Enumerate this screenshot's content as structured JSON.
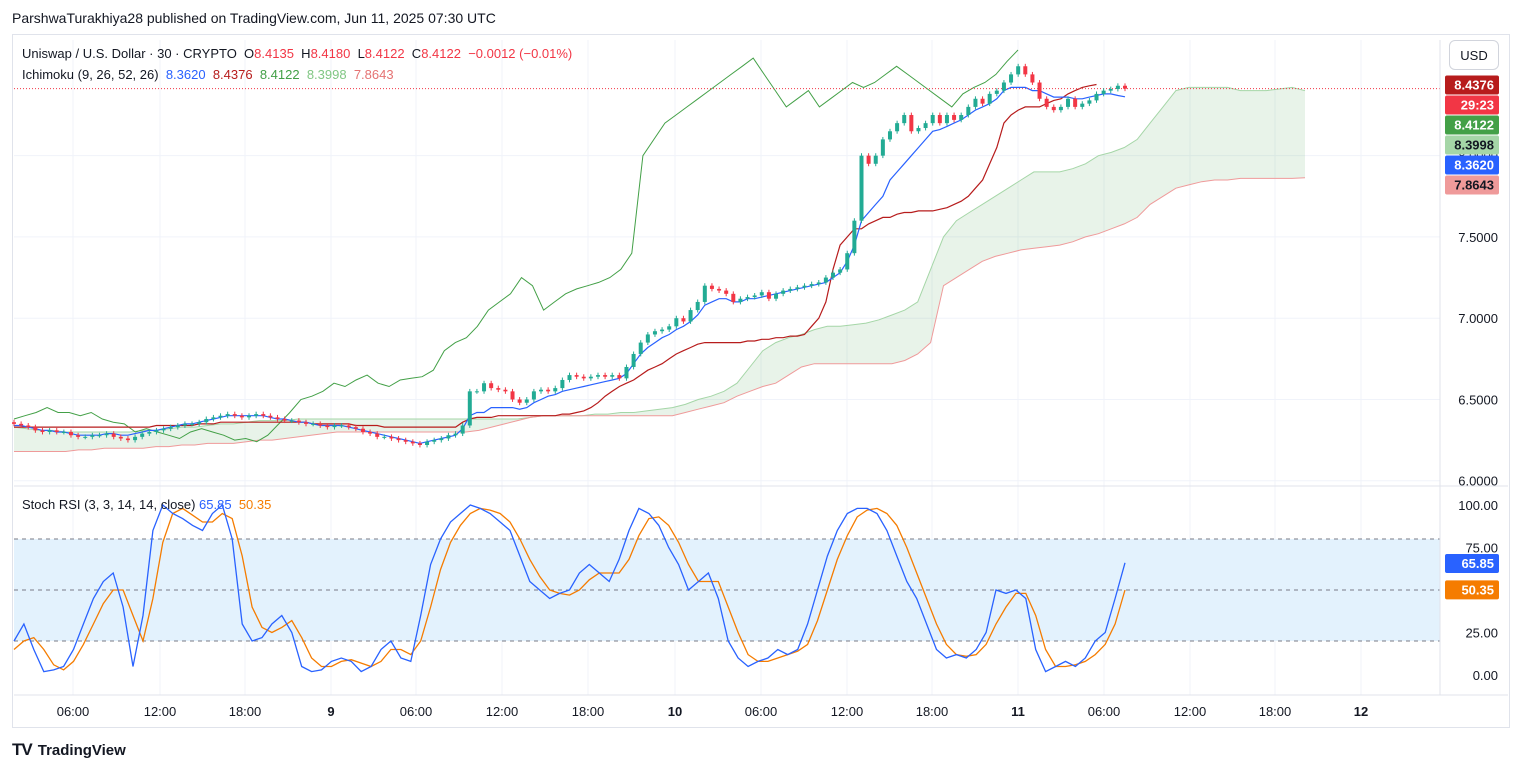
{
  "header": {
    "publisher_line": "ParshwaTurakhiya28 published on TradingView.com, Jun 11, 2025 07:30 UTC"
  },
  "currency_button": "USD",
  "legend_main": {
    "symbol": "Uniswap / U.S. Dollar · 30 · CRYPTO",
    "open_label": "O",
    "open": "8.4135",
    "high_label": "H",
    "high": "8.4180",
    "low_label": "L",
    "low": "8.4122",
    "close_label": "C",
    "close": "8.4122",
    "change": "−0.0012 (−0.01%)"
  },
  "legend_ichimoku": {
    "name": "Ichimoku (9, 26, 52, 26)",
    "conversion": "8.3620",
    "base": "8.4376",
    "lagging": "8.4122",
    "lead1": "8.3998",
    "lead2": "7.8643"
  },
  "legend_stoch": {
    "name": "Stoch RSI (3, 3, 14, 14, close)",
    "k": "65.85",
    "d": "50.35"
  },
  "footer": {
    "brand": "TradingView",
    "logo_text": "TV"
  },
  "colors": {
    "up": "#22ab94",
    "down": "#f23645",
    "conversion": "#2962ff",
    "base": "#b71c1c",
    "lagging": "#43a047",
    "lead1": "#a5d6a7",
    "lead2": "#ef9a9a",
    "k": "#2962ff",
    "d": "#f57c00",
    "band": "#e3f2fd"
  },
  "chart_data": {
    "type": "candlestick",
    "x_ticks": [
      "06:00",
      "12:00",
      "18:00",
      "9",
      "06:00",
      "12:00",
      "18:00",
      "10",
      "06:00",
      "12:00",
      "18:00",
      "11",
      "06:00",
      "12:00",
      "18:00",
      "12"
    ],
    "y_ticks": [
      "6.0000",
      "6.5000",
      "7.0000",
      "7.5000",
      "8.0000"
    ],
    "ylim": [
      5.98,
      8.65
    ],
    "price_tags": [
      {
        "label": "8.4376",
        "value": 8.4376,
        "color": "#b71c1c",
        "text_color": "#ffffff"
      },
      {
        "label": "29:23",
        "value": 8.328,
        "color": "#f23645",
        "text_color": "#ffffff"
      },
      {
        "label": "8.4122",
        "value": 8.4122,
        "color": "#43a047",
        "text_color": "#ffffff"
      },
      {
        "label": "8.3998",
        "value": 8.3998,
        "color": "#a5d6a7",
        "text_color": "#131722"
      },
      {
        "label": "8.3620",
        "value": 8.362,
        "color": "#2962ff",
        "text_color": "#ffffff"
      },
      {
        "label": "7.8643",
        "value": 7.8643,
        "color": "#ef9a9a",
        "text_color": "#131722"
      }
    ],
    "candles_close": [
      6.35,
      6.34,
      6.33,
      6.31,
      6.3,
      6.31,
      6.3,
      6.3,
      6.28,
      6.27,
      6.27,
      6.28,
      6.28,
      6.29,
      6.27,
      6.26,
      6.25,
      6.27,
      6.29,
      6.3,
      6.31,
      6.32,
      6.33,
      6.34,
      6.35,
      6.35,
      6.36,
      6.38,
      6.39,
      6.4,
      6.41,
      6.4,
      6.39,
      6.4,
      6.41,
      6.4,
      6.39,
      6.38,
      6.37,
      6.37,
      6.36,
      6.35,
      6.35,
      6.34,
      6.33,
      6.34,
      6.34,
      6.33,
      6.32,
      6.3,
      6.29,
      6.27,
      6.27,
      6.26,
      6.25,
      6.24,
      6.23,
      6.22,
      6.24,
      6.25,
      6.26,
      6.28,
      6.29,
      6.34,
      6.55,
      6.55,
      6.6,
      6.57,
      6.56,
      6.55,
      6.5,
      6.48,
      6.5,
      6.55,
      6.56,
      6.55,
      6.57,
      6.62,
      6.65,
      6.64,
      6.63,
      6.64,
      6.65,
      6.64,
      6.65,
      6.63,
      6.7,
      6.78,
      6.85,
      6.9,
      6.92,
      6.93,
      6.95,
      7.0,
      6.98,
      7.05,
      7.1,
      7.2,
      7.18,
      7.17,
      7.15,
      7.1,
      7.12,
      7.13,
      7.14,
      7.16,
      7.12,
      7.15,
      7.17,
      7.18,
      7.19,
      7.2,
      7.21,
      7.22,
      7.25,
      7.28,
      7.3,
      7.4,
      7.6,
      8.0,
      7.95,
      8.0,
      8.1,
      8.15,
      8.2,
      8.25,
      8.15,
      8.17,
      8.2,
      8.25,
      8.2,
      8.25,
      8.22,
      8.25,
      8.3,
      8.35,
      8.32,
      8.38,
      8.4,
      8.45,
      8.5,
      8.55,
      8.5,
      8.45,
      8.35,
      8.3,
      8.28,
      8.3,
      8.35,
      8.3,
      8.32,
      8.34,
      8.38,
      8.4,
      8.41,
      8.43,
      8.4122
    ],
    "conversion_line": [
      6.34,
      6.34,
      6.33,
      6.32,
      6.31,
      6.31,
      6.3,
      6.3,
      6.29,
      6.28,
      6.28,
      6.28,
      6.28,
      6.29,
      6.29,
      6.28,
      6.28,
      6.29,
      6.3,
      6.31,
      6.31,
      6.32,
      6.33,
      6.34,
      6.35,
      6.35,
      6.36,
      6.37,
      6.38,
      6.39,
      6.4,
      6.4,
      6.4,
      6.4,
      6.4,
      6.4,
      6.39,
      6.38,
      6.38,
      6.37,
      6.36,
      6.36,
      6.35,
      6.34,
      6.34,
      6.34,
      6.34,
      6.33,
      6.32,
      6.31,
      6.3,
      6.29,
      6.28,
      6.27,
      6.26,
      6.25,
      6.24,
      6.23,
      6.24,
      6.25,
      6.26,
      6.27,
      6.28,
      6.32,
      6.4,
      6.42,
      6.42,
      6.45,
      6.45,
      6.45,
      6.45,
      6.44,
      6.45,
      6.48,
      6.5,
      6.52,
      6.53,
      6.55,
      6.56,
      6.57,
      6.58,
      6.59,
      6.6,
      6.61,
      6.62,
      6.63,
      6.66,
      6.72,
      6.78,
      6.82,
      6.85,
      6.88,
      6.9,
      6.93,
      6.95,
      6.98,
      7.02,
      7.08,
      7.1,
      7.12,
      7.12,
      7.1,
      7.1,
      7.12,
      7.12,
      7.13,
      7.14,
      7.15,
      7.16,
      7.17,
      7.18,
      7.19,
      7.2,
      7.21,
      7.22,
      7.25,
      7.28,
      7.35,
      7.45,
      7.6,
      7.65,
      7.7,
      7.75,
      7.85,
      7.9,
      7.95,
      8.0,
      8.05,
      8.1,
      8.15,
      8.16,
      8.18,
      8.2,
      8.22,
      8.25,
      8.28,
      8.3,
      8.32,
      8.35,
      8.4,
      8.42,
      8.42,
      8.42,
      8.4,
      8.4,
      8.38,
      8.36,
      8.36,
      8.36,
      8.35,
      8.35,
      8.36,
      8.37,
      8.38,
      8.38,
      8.37,
      8.362
    ],
    "base_line": [
      6.33,
      6.33,
      6.33,
      6.33,
      6.33,
      6.33,
      6.33,
      6.33,
      6.33,
      6.33,
      6.33,
      6.33,
      6.33,
      6.33,
      6.33,
      6.33,
      6.33,
      6.33,
      6.33,
      6.33,
      6.34,
      6.34,
      6.34,
      6.34,
      6.34,
      6.34,
      6.35,
      6.35,
      6.35,
      6.36,
      6.36,
      6.36,
      6.36,
      6.36,
      6.36,
      6.36,
      6.36,
      6.36,
      6.36,
      6.36,
      6.36,
      6.36,
      6.35,
      6.35,
      6.35,
      6.35,
      6.35,
      6.35,
      6.34,
      6.34,
      6.34,
      6.34,
      6.33,
      6.33,
      6.33,
      6.33,
      6.33,
      6.33,
      6.33,
      6.33,
      6.33,
      6.33,
      6.33,
      6.36,
      6.38,
      6.39,
      6.39,
      6.39,
      6.4,
      6.4,
      6.4,
      6.4,
      6.4,
      6.4,
      6.4,
      6.4,
      6.4,
      6.41,
      6.41,
      6.42,
      6.43,
      6.45,
      6.48,
      6.52,
      6.55,
      6.58,
      6.6,
      6.62,
      6.65,
      6.68,
      6.7,
      6.72,
      6.75,
      6.78,
      6.8,
      6.82,
      6.84,
      6.85,
      6.85,
      6.85,
      6.85,
      6.85,
      6.85,
      6.86,
      6.86,
      6.87,
      6.87,
      6.88,
      6.88,
      6.89,
      6.89,
      6.9,
      6.95,
      7.0,
      7.1,
      7.3,
      7.45,
      7.5,
      7.55,
      7.55,
      7.58,
      7.6,
      7.62,
      7.62,
      7.64,
      7.65,
      7.65,
      7.66,
      7.66,
      7.66,
      7.67,
      7.68,
      7.7,
      7.72,
      7.75,
      7.8,
      7.85,
      7.95,
      8.05,
      8.2,
      8.25,
      8.28,
      8.3,
      8.3,
      8.3,
      8.32,
      8.34,
      8.35,
      8.38,
      8.4,
      8.42,
      8.43,
      8.4376
    ],
    "lagging_span": [
      6.38,
      6.4,
      6.42,
      6.45,
      6.42,
      6.42,
      6.4,
      6.42,
      6.38,
      6.36,
      6.35,
      6.3,
      6.32,
      6.3,
      6.28,
      6.26,
      6.3,
      6.32,
      6.3,
      6.28,
      6.25,
      6.26,
      6.24,
      6.28,
      6.35,
      6.42,
      6.5,
      6.52,
      6.55,
      6.6,
      6.58,
      6.62,
      6.65,
      6.6,
      6.58,
      6.62,
      6.63,
      6.64,
      6.68,
      6.8,
      6.85,
      6.88,
      6.95,
      7.05,
      7.1,
      7.15,
      7.25,
      7.2,
      7.05,
      7.1,
      7.15,
      7.18,
      7.2,
      7.22,
      7.25,
      7.3,
      7.4,
      8.0,
      8.1,
      8.2,
      8.25,
      8.3,
      8.35,
      8.4,
      8.45,
      8.5,
      8.55,
      8.6,
      8.5,
      8.4,
      8.3,
      8.35,
      8.4,
      8.3,
      8.35,
      8.4,
      8.45,
      8.42,
      8.45,
      8.5,
      8.55,
      8.5,
      8.45,
      8.4,
      8.35,
      8.3,
      8.38,
      8.42,
      8.45,
      8.5,
      8.58,
      8.65
    ],
    "lead1": [
      6.33,
      6.32,
      6.31,
      6.31,
      6.3,
      6.3,
      6.3,
      6.3,
      6.3,
      6.3,
      6.31,
      6.31,
      6.32,
      6.33,
      6.33,
      6.34,
      6.35,
      6.35,
      6.36,
      6.37,
      6.37,
      6.37,
      6.38,
      6.38,
      6.38,
      6.38,
      6.38,
      6.38,
      6.38,
      6.38,
      6.38,
      6.38,
      6.38,
      6.38,
      6.38,
      6.38,
      6.38,
      6.38,
      6.38,
      6.38,
      6.39,
      6.4,
      6.4,
      6.4,
      6.4,
      6.41,
      6.41,
      6.42,
      6.42,
      6.43,
      6.44,
      6.45,
      6.47,
      6.5,
      6.52,
      6.55,
      6.6,
      6.7,
      6.8,
      6.85,
      6.88,
      6.9,
      6.93,
      6.95,
      6.95,
      6.96,
      6.97,
      6.99,
      7.02,
      7.05,
      7.1,
      7.3,
      7.5,
      7.6,
      7.65,
      7.7,
      7.75,
      7.8,
      7.85,
      7.9,
      7.9,
      7.9,
      7.92,
      7.95,
      8.0,
      8.02,
      8.05,
      8.1,
      8.2,
      8.3,
      8.4,
      8.42,
      8.42,
      8.42,
      8.42,
      8.4,
      8.4,
      8.4,
      8.41,
      8.42,
      8.3998
    ],
    "lead2": [
      6.18,
      6.18,
      6.18,
      6.18,
      6.18,
      6.19,
      6.19,
      6.2,
      6.2,
      6.2,
      6.2,
      6.21,
      6.21,
      6.22,
      6.22,
      6.23,
      6.23,
      6.23,
      6.24,
      6.25,
      6.25,
      6.26,
      6.27,
      6.28,
      6.29,
      6.3,
      6.3,
      6.3,
      6.3,
      6.3,
      6.3,
      6.3,
      6.3,
      6.3,
      6.3,
      6.3,
      6.31,
      6.33,
      6.35,
      6.37,
      6.39,
      6.4,
      6.4,
      6.4,
      6.4,
      6.4,
      6.4,
      6.4,
      6.4,
      6.4,
      6.4,
      6.4,
      6.42,
      6.44,
      6.46,
      6.48,
      6.52,
      6.55,
      6.58,
      6.6,
      6.65,
      6.7,
      6.72,
      6.72,
      6.72,
      6.72,
      6.72,
      6.72,
      6.72,
      6.74,
      6.78,
      6.85,
      7.2,
      7.25,
      7.3,
      7.35,
      7.38,
      7.4,
      7.42,
      7.43,
      7.44,
      7.45,
      7.47,
      7.5,
      7.52,
      7.55,
      7.58,
      7.62,
      7.7,
      7.75,
      7.8,
      7.82,
      7.84,
      7.85,
      7.85,
      7.86,
      7.86,
      7.86,
      7.86,
      7.86,
      7.8643
    ],
    "stoch": {
      "ylim": [
        0,
        100
      ],
      "y_ticks": [
        "0.00",
        "25.00",
        "75.00",
        "100.00"
      ],
      "bands": [
        20,
        80,
        50
      ],
      "tags": [
        {
          "label": "65.85",
          "value": 65.85,
          "color": "#2962ff"
        },
        {
          "label": "50.35",
          "value": 50.35,
          "color": "#f57c00"
        }
      ],
      "k": [
        20,
        30,
        15,
        2,
        3,
        5,
        15,
        30,
        45,
        55,
        60,
        40,
        5,
        35,
        85,
        100,
        95,
        92,
        88,
        85,
        95,
        100,
        80,
        30,
        20,
        22,
        30,
        35,
        25,
        5,
        2,
        3,
        8,
        10,
        8,
        2,
        5,
        15,
        20,
        10,
        8,
        35,
        65,
        80,
        90,
        95,
        100,
        98,
        95,
        90,
        85,
        70,
        55,
        50,
        45,
        48,
        50,
        60,
        65,
        60,
        55,
        68,
        85,
        98,
        95,
        88,
        75,
        65,
        50,
        55,
        60,
        45,
        20,
        10,
        5,
        8,
        10,
        15,
        12,
        15,
        30,
        50,
        70,
        85,
        95,
        98,
        98,
        95,
        85,
        70,
        55,
        45,
        30,
        15,
        10,
        12,
        10,
        15,
        25,
        50,
        48,
        50,
        45,
        15,
        2,
        5,
        8,
        5,
        10,
        20,
        25,
        45,
        66
      ],
      "d": [
        15,
        20,
        22,
        15,
        6,
        3,
        8,
        18,
        30,
        42,
        50,
        50,
        35,
        20,
        45,
        78,
        95,
        98,
        94,
        90,
        90,
        95,
        92,
        70,
        40,
        28,
        25,
        28,
        32,
        22,
        10,
        5,
        5,
        8,
        9,
        7,
        5,
        8,
        15,
        15,
        12,
        20,
        40,
        62,
        78,
        88,
        95,
        98,
        97,
        95,
        90,
        80,
        68,
        58,
        50,
        48,
        47,
        50,
        56,
        60,
        60,
        60,
        68,
        82,
        92,
        93,
        88,
        78,
        65,
        55,
        55,
        55,
        40,
        25,
        12,
        8,
        8,
        10,
        12,
        14,
        18,
        32,
        50,
        68,
        82,
        93,
        97,
        98,
        95,
        88,
        75,
        60,
        45,
        30,
        18,
        12,
        11,
        12,
        18,
        30,
        40,
        48,
        48,
        35,
        15,
        5,
        5,
        6,
        8,
        12,
        18,
        30,
        50
      ]
    }
  }
}
